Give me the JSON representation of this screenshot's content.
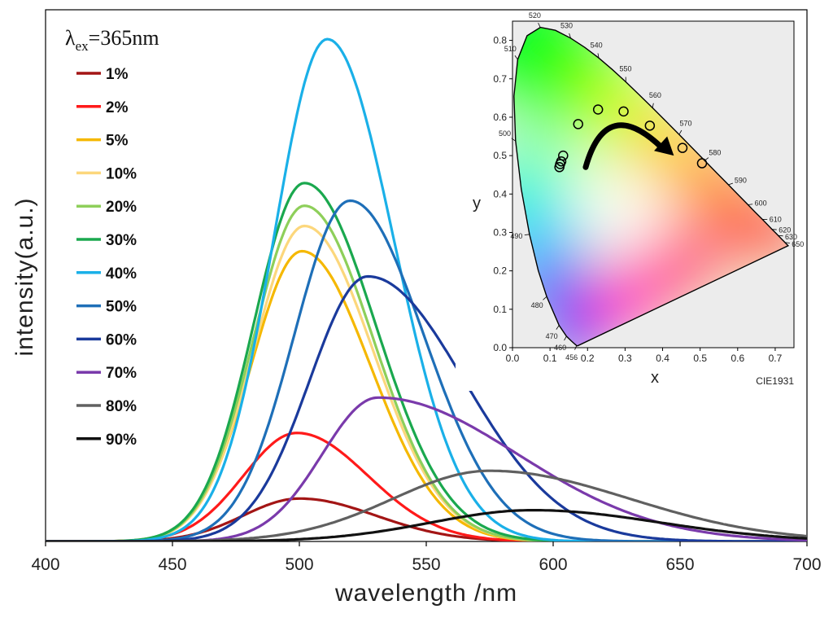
{
  "chart_data": [
    {
      "type": "line",
      "title_main": "λ",
      "title_sub": "ex",
      "title_rest": "=365nm",
      "xlabel": "wavelength /nm",
      "ylabel": "intensity(a.u.)",
      "xlim": [
        400,
        700
      ],
      "ylim": [
        0,
        1.0
      ],
      "xticks": [
        400,
        450,
        500,
        550,
        600,
        650,
        700
      ],
      "legend_position": "top-left",
      "series": [
        {
          "name": "1%",
          "color": "#a31515",
          "peak": 500,
          "sigmaL": 22,
          "sigmaR": 30,
          "amp": 0.085
        },
        {
          "name": "2%",
          "color": "#ff1a1a",
          "peak": 499,
          "sigmaL": 21,
          "sigmaR": 28,
          "amp": 0.215
        },
        {
          "name": "5%",
          "color": "#f5b800",
          "peak": 501,
          "sigmaL": 20,
          "sigmaR": 27,
          "amp": 0.575
        },
        {
          "name": "10%",
          "color": "#fcd77c",
          "peak": 502,
          "sigmaL": 20,
          "sigmaR": 27,
          "amp": 0.625
        },
        {
          "name": "20%",
          "color": "#8ecf5a",
          "peak": 502,
          "sigmaL": 20,
          "sigmaR": 27,
          "amp": 0.665
        },
        {
          "name": "30%",
          "color": "#1aa84e",
          "peak": 502,
          "sigmaL": 20,
          "sigmaR": 28,
          "amp": 0.71
        },
        {
          "name": "40%",
          "color": "#1ab0e8",
          "peak": 511,
          "sigmaL": 21,
          "sigmaR": 26,
          "amp": 0.995
        },
        {
          "name": "50%",
          "color": "#1e6fb8",
          "peak": 520,
          "sigmaL": 22,
          "sigmaR": 29,
          "amp": 0.675
        },
        {
          "name": "60%",
          "color": "#1a3a9c",
          "peak": 527,
          "sigmaL": 23,
          "sigmaR": 38,
          "amp": 0.525
        },
        {
          "name": "70%",
          "color": "#7a3aab",
          "peak": 531,
          "sigmaL": 22,
          "sigmaR": 55,
          "amp": 0.285
        },
        {
          "name": "80%",
          "color": "#606060",
          "peak": 575,
          "sigmaL": 38,
          "sigmaR": 55,
          "amp": 0.14
        },
        {
          "name": "90%",
          "color": "#111111",
          "peak": 592,
          "sigmaL": 40,
          "sigmaR": 50,
          "amp": 0.062
        }
      ]
    },
    {
      "type": "scatter",
      "xlabel": "x",
      "ylabel": "y",
      "xlim": [
        0.0,
        0.75
      ],
      "ylim": [
        0.0,
        0.85
      ],
      "xticks": [
        "0.0",
        "0.1",
        "0.2",
        "0.3",
        "0.4",
        "0.5",
        "0.6",
        "0.7"
      ],
      "yticks": [
        "0.0",
        "0.1",
        "0.2",
        "0.3",
        "0.4",
        "0.5",
        "0.6",
        "0.7",
        "0.8"
      ],
      "footer": "CIE1931",
      "wavelength_labels": [
        {
          "label": "456",
          "x": 0.171,
          "y": 0.006
        },
        {
          "label": "460",
          "x": 0.144,
          "y": 0.03
        },
        {
          "label": "470",
          "x": 0.124,
          "y": 0.058
        },
        {
          "label": "480",
          "x": 0.091,
          "y": 0.133
        },
        {
          "label": "490",
          "x": 0.045,
          "y": 0.295
        },
        {
          "label": "500",
          "x": 0.008,
          "y": 0.538
        },
        {
          "label": "510",
          "x": 0.014,
          "y": 0.75
        },
        {
          "label": "520",
          "x": 0.074,
          "y": 0.834
        },
        {
          "label": "530",
          "x": 0.155,
          "y": 0.806
        },
        {
          "label": "540",
          "x": 0.23,
          "y": 0.754
        },
        {
          "label": "550",
          "x": 0.302,
          "y": 0.692
        },
        {
          "label": "560",
          "x": 0.373,
          "y": 0.624
        },
        {
          "label": "570",
          "x": 0.444,
          "y": 0.555
        },
        {
          "label": "580",
          "x": 0.512,
          "y": 0.487
        },
        {
          "label": "590",
          "x": 0.575,
          "y": 0.424
        },
        {
          "label": "600",
          "x": 0.627,
          "y": 0.372
        },
        {
          "label": "610",
          "x": 0.666,
          "y": 0.334
        },
        {
          "label": "620",
          "x": 0.691,
          "y": 0.308
        },
        {
          "label": "630",
          "x": 0.708,
          "y": 0.292
        },
        {
          "label": "650",
          "x": 0.726,
          "y": 0.274
        }
      ],
      "points": [
        {
          "x": 0.125,
          "y": 0.47
        },
        {
          "x": 0.127,
          "y": 0.478
        },
        {
          "x": 0.13,
          "y": 0.485
        },
        {
          "x": 0.135,
          "y": 0.5
        },
        {
          "x": 0.175,
          "y": 0.582
        },
        {
          "x": 0.228,
          "y": 0.62
        },
        {
          "x": 0.296,
          "y": 0.615
        },
        {
          "x": 0.366,
          "y": 0.578
        },
        {
          "x": 0.453,
          "y": 0.52
        },
        {
          "x": 0.505,
          "y": 0.48
        }
      ],
      "arrow": {
        "from": [
          0.195,
          0.47
        ],
        "via": [
          0.25,
          0.66
        ],
        "to": [
          0.43,
          0.5
        ]
      }
    }
  ]
}
